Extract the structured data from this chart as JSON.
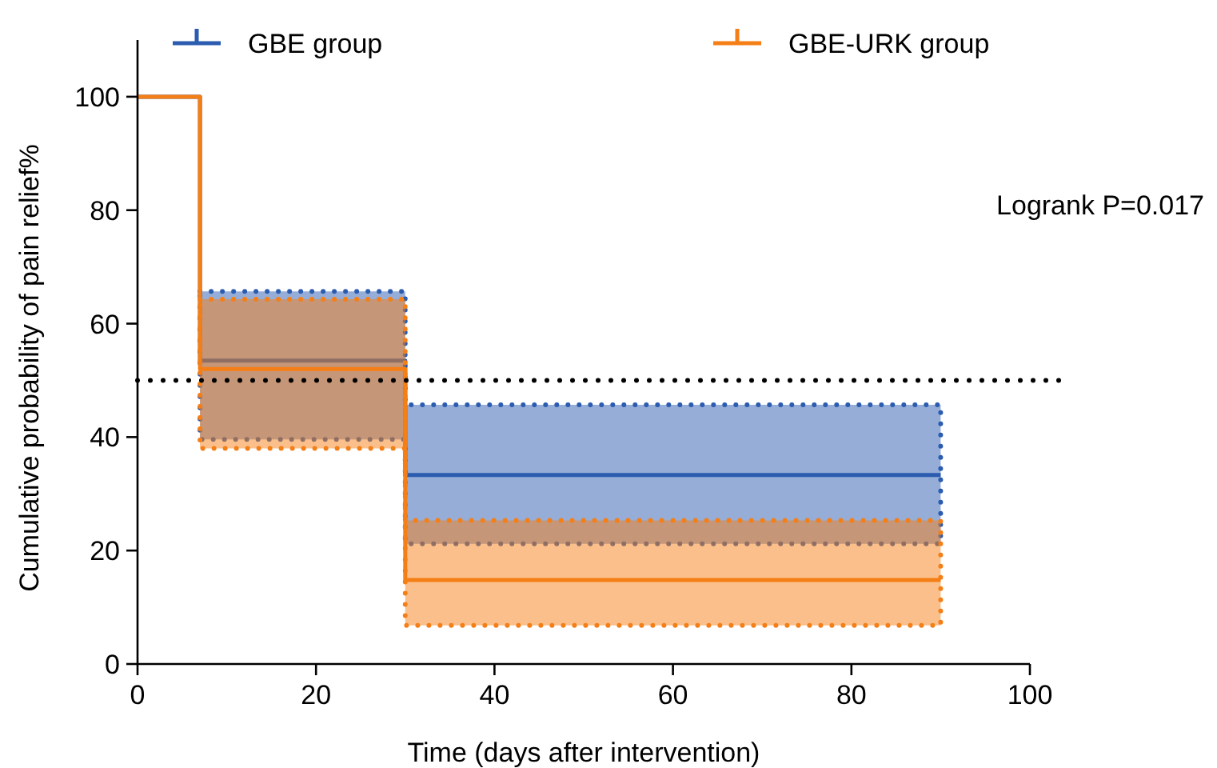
{
  "chart_data": {
    "type": "step",
    "xlabel": "Time (days after intervention)",
    "ylabel": "Cumulative probability of pain relief%",
    "x": [
      0,
      7,
      30,
      90
    ],
    "series": [
      {
        "name": "GBE group",
        "color": "#2b5cb0",
        "values": [
          100,
          53.5,
          33.3,
          33.3
        ],
        "lower": [
          null,
          39.6,
          21.2,
          21.2
        ],
        "upper": [
          null,
          65.7,
          45.7,
          45.7
        ]
      },
      {
        "name": "GBE-URK group",
        "color": "#f57f17",
        "values": [
          100,
          52,
          14.8,
          14.8
        ],
        "lower": [
          null,
          38,
          6.8,
          6.8
        ],
        "upper": [
          null,
          64.3,
          25.3,
          25.3
        ]
      }
    ],
    "xlim": [
      0,
      100
    ],
    "xticks": [
      0,
      20,
      40,
      60,
      80,
      100
    ],
    "ylim": [
      0,
      110
    ],
    "yticks": [
      0,
      20,
      40,
      60,
      80,
      100
    ],
    "ref_lines": [
      {
        "axis": "y",
        "value": 50,
        "color": "#000000",
        "line_style": "dotted"
      }
    ],
    "annotations": [
      "Logrank P=0.017"
    ],
    "legend": "top",
    "grid": false,
    "line_style": "solid"
  }
}
